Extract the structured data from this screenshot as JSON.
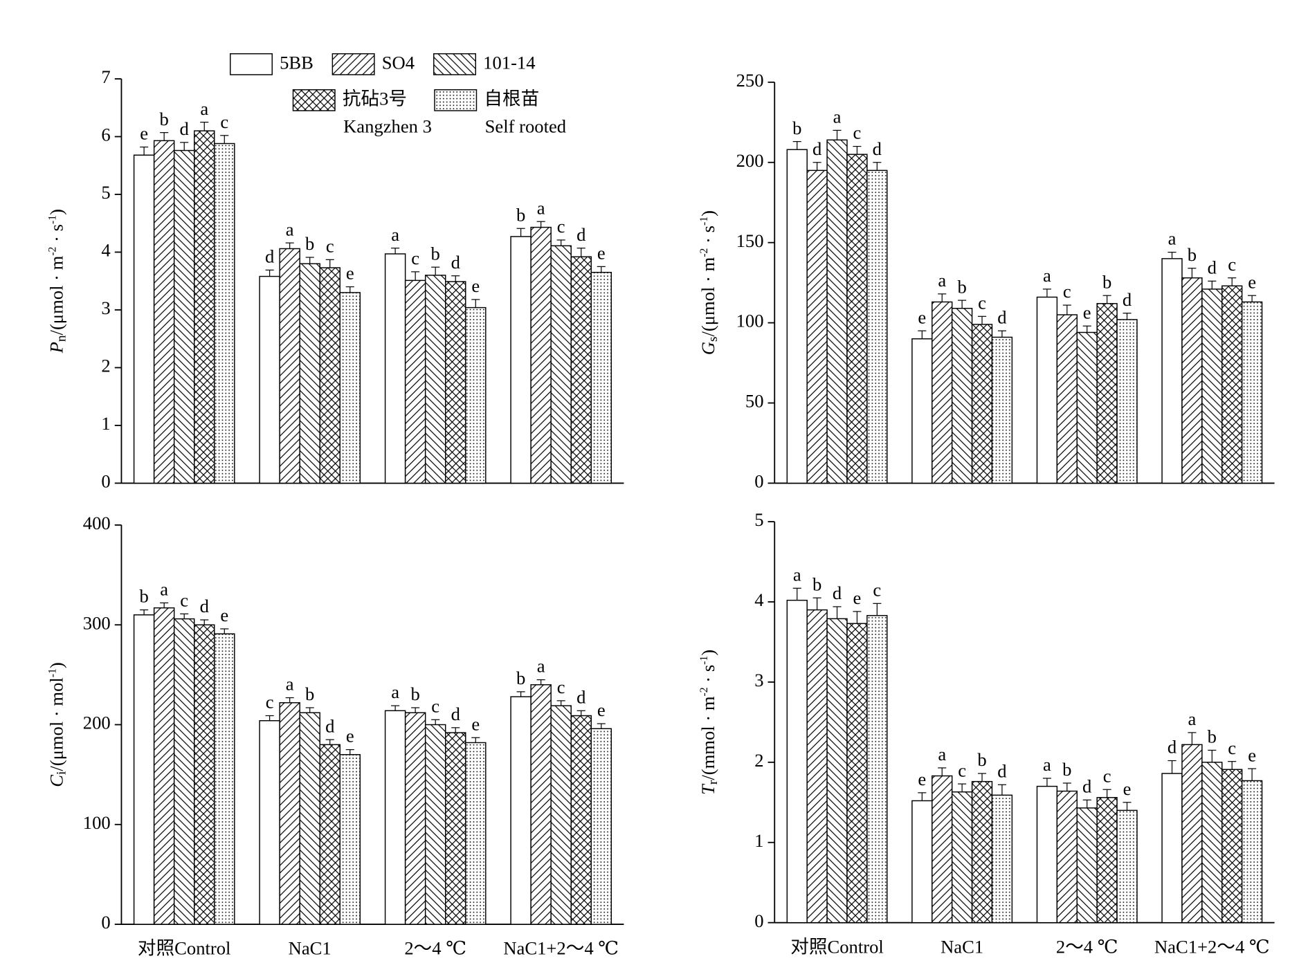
{
  "chart_data": [
    {
      "type": "bar",
      "legend": "top",
      "ylabel": [
        {
          "text": "P",
          "style": "italic"
        },
        {
          "text": "n",
          "style": "sub"
        },
        {
          "text": "/(μmol · m",
          "style": "normal"
        },
        {
          "text": "-2",
          "style": "sup"
        },
        {
          "text": " · s",
          "style": "normal"
        },
        {
          "text": "-1",
          "style": "sup"
        },
        {
          "text": ")",
          "style": "normal"
        }
      ],
      "ylim": [
        0,
        7
      ],
      "yticks": [
        0,
        1,
        2,
        3,
        4,
        5,
        6,
        7
      ],
      "series": [
        {
          "name": "5BB",
          "color": "#ffffff",
          "hatch": "none",
          "values": [
            5.68,
            3.58,
            3.97,
            4.27
          ],
          "errors": [
            0.14,
            0.11,
            0.1,
            0.14
          ],
          "labels": [
            "e",
            "d",
            "a",
            "b"
          ]
        },
        {
          "name": "SO4",
          "color": "#ffffff",
          "hatch": "/",
          "values": [
            5.93,
            4.06,
            3.51,
            4.43
          ],
          "errors": [
            0.14,
            0.1,
            0.15,
            0.1
          ],
          "labels": [
            "b",
            "a",
            "c",
            "a"
          ]
        },
        {
          "name": "101-14",
          "color": "#ffffff",
          "hatch": "\\",
          "values": [
            5.76,
            3.8,
            3.6,
            4.11
          ],
          "errors": [
            0.14,
            0.11,
            0.14,
            0.1
          ],
          "labels": [
            "d",
            "b",
            "b",
            "c"
          ]
        },
        {
          "name": "抗砧3号",
          "name_en": "Kangzhen 3",
          "color": "#ffffff",
          "hatch": "x",
          "values": [
            6.1,
            3.73,
            3.49,
            3.92
          ],
          "errors": [
            0.15,
            0.14,
            0.1,
            0.15
          ],
          "labels": [
            "a",
            "c",
            "d",
            "d"
          ]
        },
        {
          "name": "自根苗",
          "name_en": "Self rooted",
          "color": "#ffffff",
          "hatch": ".",
          "values": [
            5.88,
            3.3,
            3.04,
            3.65
          ],
          "errors": [
            0.14,
            0.1,
            0.14,
            0.1
          ],
          "labels": [
            "c",
            "e",
            "e",
            "e"
          ]
        }
      ]
    },
    {
      "type": "bar",
      "ylabel": [
        {
          "text": "G",
          "style": "italic"
        },
        {
          "text": "s",
          "style": "sub"
        },
        {
          "text": "/(μmol · m",
          "style": "normal"
        },
        {
          "text": "-2",
          "style": "sup"
        },
        {
          "text": " · s",
          "style": "normal"
        },
        {
          "text": "-1",
          "style": "sup"
        },
        {
          "text": ")",
          "style": "normal"
        }
      ],
      "ylim": [
        0,
        250
      ],
      "yticks": [
        0,
        50,
        100,
        150,
        200,
        250
      ],
      "series": [
        {
          "color": "#ffffff",
          "hatch": "none",
          "values": [
            208,
            90,
            116,
            140
          ],
          "errors": [
            5,
            5,
            5,
            4
          ],
          "labels": [
            "b",
            "e",
            "a",
            "a"
          ]
        },
        {
          "color": "#ffffff",
          "hatch": "/",
          "values": [
            195,
            113,
            105,
            128
          ],
          "errors": [
            5,
            5,
            6,
            6
          ],
          "labels": [
            "d",
            "a",
            "c",
            "b"
          ]
        },
        {
          "color": "#ffffff",
          "hatch": "\\",
          "values": [
            214,
            109,
            94,
            121
          ],
          "errors": [
            6,
            5,
            4,
            5
          ],
          "labels": [
            "a",
            "b",
            "e",
            "d"
          ]
        },
        {
          "color": "#ffffff",
          "hatch": "x",
          "values": [
            205,
            99,
            112,
            123
          ],
          "errors": [
            5,
            5,
            5,
            5
          ],
          "labels": [
            "c",
            "c",
            "b",
            "c"
          ]
        },
        {
          "color": "#ffffff",
          "hatch": ".",
          "values": [
            195,
            91,
            102,
            113
          ],
          "errors": [
            5,
            4,
            4,
            4
          ],
          "labels": [
            "d",
            "d",
            "d",
            "e"
          ]
        }
      ]
    },
    {
      "type": "bar",
      "categories": [
        "对照Control",
        "NaC1",
        "2～4 ℃",
        "NaC1+2～4 ℃"
      ],
      "ylabel": [
        {
          "text": "C",
          "style": "italic"
        },
        {
          "text": "i",
          "style": "sub"
        },
        {
          "text": "/(μmol · mol",
          "style": "normal"
        },
        {
          "text": "-1",
          "style": "sup"
        },
        {
          "text": ")",
          "style": "normal"
        }
      ],
      "ylim": [
        0,
        400
      ],
      "yticks": [
        0,
        100,
        200,
        300,
        400
      ],
      "series": [
        {
          "color": "#ffffff",
          "hatch": "none",
          "values": [
            310,
            204,
            214,
            228
          ],
          "errors": [
            5,
            5,
            5,
            5
          ],
          "labels": [
            "b",
            "c",
            "a",
            "b"
          ]
        },
        {
          "color": "#ffffff",
          "hatch": "/",
          "values": [
            317,
            222,
            212,
            240
          ],
          "errors": [
            5,
            5,
            5,
            5
          ],
          "labels": [
            "a",
            "a",
            "b",
            "a"
          ]
        },
        {
          "color": "#ffffff",
          "hatch": "\\",
          "values": [
            306,
            212,
            200,
            219
          ],
          "errors": [
            5,
            5,
            5,
            5
          ],
          "labels": [
            "c",
            "b",
            "c",
            "c"
          ]
        },
        {
          "color": "#ffffff",
          "hatch": "x",
          "values": [
            300,
            180,
            192,
            209
          ],
          "errors": [
            5,
            5,
            5,
            5
          ],
          "labels": [
            "d",
            "d",
            "d",
            "d"
          ]
        },
        {
          "color": "#ffffff",
          "hatch": ".",
          "values": [
            291,
            170,
            182,
            196
          ],
          "errors": [
            5,
            5,
            5,
            5
          ],
          "labels": [
            "e",
            "e",
            "e",
            "e"
          ]
        }
      ]
    },
    {
      "type": "bar",
      "categories": [
        "对照Control",
        "NaC1",
        "2～4 ℃",
        "NaC1+2～4 ℃"
      ],
      "ylabel": [
        {
          "text": "T",
          "style": "italic"
        },
        {
          "text": "r",
          "style": "sub"
        },
        {
          "text": "/(mmol · m",
          "style": "normal"
        },
        {
          "text": "-2",
          "style": "sup"
        },
        {
          "text": " · s",
          "style": "normal"
        },
        {
          "text": "-1",
          "style": "sup"
        },
        {
          "text": ")",
          "style": "normal"
        }
      ],
      "ylim": [
        0,
        5
      ],
      "yticks": [
        0,
        1,
        2,
        3,
        4,
        5
      ],
      "series": [
        {
          "color": "#ffffff",
          "hatch": "none",
          "values": [
            4.02,
            1.52,
            1.7,
            1.86
          ],
          "errors": [
            0.15,
            0.1,
            0.1,
            0.16
          ],
          "labels": [
            "a",
            "e",
            "a",
            "d"
          ]
        },
        {
          "color": "#ffffff",
          "hatch": "/",
          "values": [
            3.9,
            1.83,
            1.64,
            2.22
          ],
          "errors": [
            0.15,
            0.1,
            0.1,
            0.15
          ],
          "labels": [
            "b",
            "a",
            "b",
            "a"
          ]
        },
        {
          "color": "#ffffff",
          "hatch": "\\",
          "values": [
            3.79,
            1.63,
            1.43,
            2.0
          ],
          "errors": [
            0.15,
            0.1,
            0.1,
            0.15
          ],
          "labels": [
            "d",
            "c",
            "d",
            "b"
          ]
        },
        {
          "color": "#ffffff",
          "hatch": "x",
          "values": [
            3.73,
            1.76,
            1.56,
            1.91
          ],
          "errors": [
            0.15,
            0.1,
            0.1,
            0.1
          ],
          "labels": [
            "e",
            "b",
            "c",
            "c"
          ]
        },
        {
          "color": "#ffffff",
          "hatch": ".",
          "values": [
            3.83,
            1.59,
            1.4,
            1.77
          ],
          "errors": [
            0.15,
            0.13,
            0.1,
            0.15
          ],
          "labels": [
            "c",
            "d",
            "e",
            "e"
          ]
        }
      ]
    }
  ]
}
